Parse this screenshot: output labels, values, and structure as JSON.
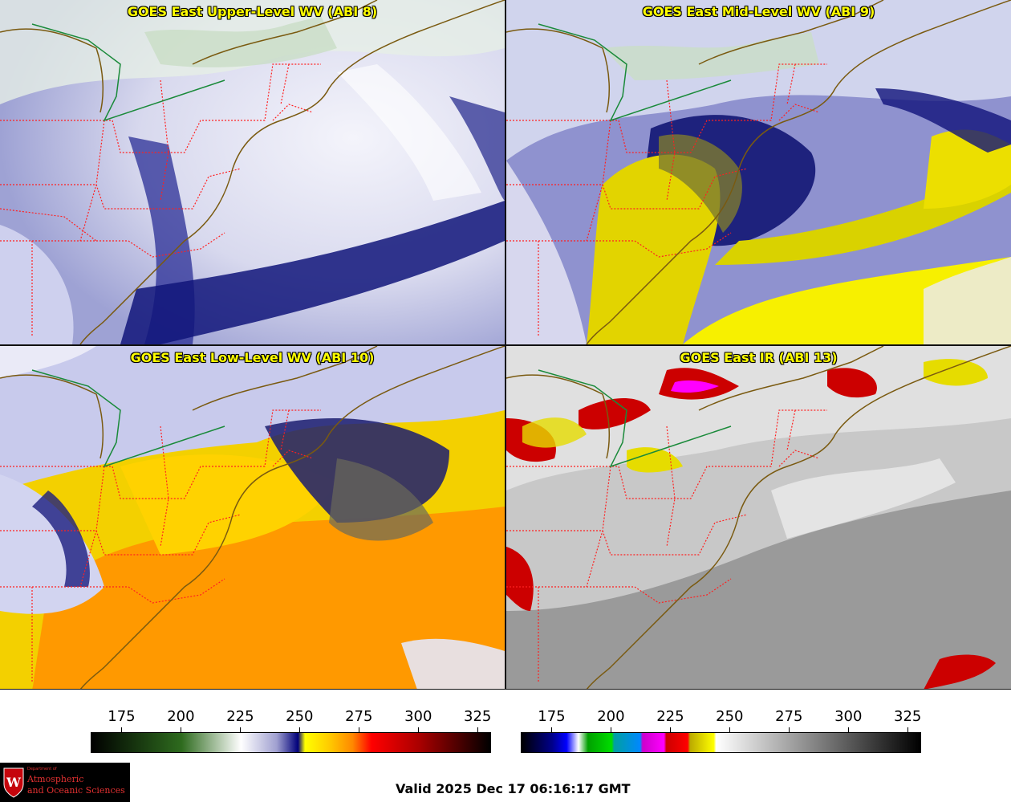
{
  "panels": {
    "upper": {
      "title": "GOES East Upper-Level WV (ABI 8)"
    },
    "mid": {
      "title": "GOES East Mid-Level WV (ABI 9)"
    },
    "low": {
      "title": "GOES East Low-Level WV (ABI 10)"
    },
    "ir": {
      "title": "GOES East IR (ABI 13)"
    }
  },
  "colorbars": {
    "wv": {
      "ticks": [
        "175",
        "200",
        "225",
        "250",
        "275",
        "300",
        "325"
      ],
      "range": [
        162,
        330
      ],
      "stops": [
        {
          "v": 162,
          "c": "#000000"
        },
        {
          "v": 200,
          "c": "#2e6b1e"
        },
        {
          "v": 225,
          "c": "#ffffff"
        },
        {
          "v": 240,
          "c": "#a0a0d0"
        },
        {
          "v": 249,
          "c": "#00007a"
        },
        {
          "v": 252,
          "c": "#ffff00"
        },
        {
          "v": 262,
          "c": "#ffcc00"
        },
        {
          "v": 272,
          "c": "#ff8800"
        },
        {
          "v": 280,
          "c": "#ff0000"
        },
        {
          "v": 300,
          "c": "#aa0000"
        },
        {
          "v": 330,
          "c": "#000000"
        }
      ]
    },
    "ir": {
      "ticks": [
        "175",
        "200",
        "225",
        "250",
        "275",
        "300",
        "325"
      ],
      "range": [
        162,
        330
      ],
      "stops": [
        {
          "v": 162,
          "c": "#000000"
        },
        {
          "v": 175,
          "c": "#00008c"
        },
        {
          "v": 181,
          "c": "#0000ff"
        },
        {
          "v": 186,
          "c": "#ffffff"
        },
        {
          "v": 190,
          "c": "#00a000"
        },
        {
          "v": 200,
          "c": "#00dd00"
        },
        {
          "v": 201,
          "c": "#00a0a0"
        },
        {
          "v": 212,
          "c": "#0088ff"
        },
        {
          "v": 213,
          "c": "#cc00cc"
        },
        {
          "v": 222,
          "c": "#ff00ff"
        },
        {
          "v": 223,
          "c": "#cc0000"
        },
        {
          "v": 232,
          "c": "#ff0000"
        },
        {
          "v": 233,
          "c": "#bbaa00"
        },
        {
          "v": 243,
          "c": "#ffff00"
        },
        {
          "v": 244,
          "c": "#ffffff"
        },
        {
          "v": 330,
          "c": "#000000"
        }
      ]
    }
  },
  "valid_time": "Valid 2025 Dec 17 06:16:17 GMT",
  "logo": {
    "line1": "Department of",
    "line2": "Atmospheric",
    "line3": "and Oceanic Sciences",
    "letter": "W"
  },
  "colors": {
    "coastline": "#7a5a10",
    "state_border": "#ff2020",
    "title_text": "#ffff00",
    "canada_us_border": "#1a8a3a"
  }
}
